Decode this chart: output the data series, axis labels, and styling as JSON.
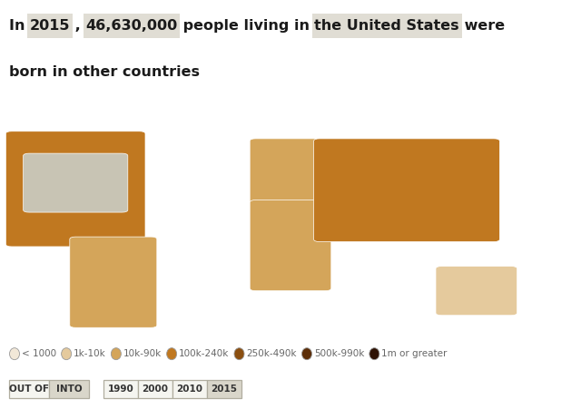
{
  "background_color": "#ffffff",
  "map_ocean_color": "#c8ddf0",
  "title_line1": [
    {
      "text": "In ",
      "highlight": false
    },
    {
      "text": "2015",
      "highlight": true
    },
    {
      "text": " , ",
      "highlight": false
    },
    {
      "text": "46,630,000",
      "highlight": true
    },
    {
      "text": " people living in ",
      "highlight": false
    },
    {
      "text": "the United States",
      "highlight": true
    },
    {
      "text": " were",
      "highlight": false
    }
  ],
  "title_line2": [
    {
      "text": "born in other countries",
      "highlight": false
    }
  ],
  "highlight_box_color": "#e0ddd4",
  "title_fontsize": 11.5,
  "title_color": "#1a1a1a",
  "legend_items": [
    {
      "label": "< 1000",
      "color": "#f2e8d8"
    },
    {
      "label": "1k-10k",
      "color": "#e5ca9d"
    },
    {
      "label": "10k-90k",
      "color": "#d4a55a"
    },
    {
      "label": "100k-240k",
      "color": "#c07820"
    },
    {
      "label": "250k-490k",
      "color": "#8b4f10"
    },
    {
      "label": "500k-990k",
      "color": "#5c2e08"
    },
    {
      "label": "1m or greater",
      "color": "#2e1204"
    }
  ],
  "legend_fontsize": 7.5,
  "legend_color": "#666666",
  "buttons_left": [
    "OUT OF",
    "INTO"
  ],
  "buttons_right": [
    "1990",
    "2000",
    "2010",
    "2015"
  ],
  "active_left": "INTO",
  "active_right": "2015",
  "btn_active_bg": "#d9d6ca",
  "btn_inactive_bg": "#f5f5f0",
  "btn_border": "#b0ad9f",
  "btn_fontsize": 7.5,
  "btn_color": "#333333",
  "country_color_map": {
    "United States of America": "#c8c4b4",
    "Mexico": "#8b4f10",
    "Canada": "#c07820",
    "China": "#2e1204",
    "India": "#2e1204",
    "Philippines": "#5c2e08",
    "El Salvador": "#c07820",
    "Vietnam": "#c07820",
    "Cuba": "#c07820",
    "Korea": "#c07820",
    "South Korea": "#c07820",
    "Dominican Republic": "#c07820",
    "Guatemala": "#c07820",
    "Colombia": "#d4a55a",
    "Honduras": "#d4a55a",
    "Jamaica": "#d4a55a",
    "Ecuador": "#d4a55a",
    "Brazil": "#5c2e08",
    "Russia": "#c07820",
    "Germany": "#d4a55a",
    "United Kingdom": "#d4a55a",
    "Poland": "#d4a55a",
    "Japan": "#d4a55a",
    "Haiti": "#d4a55a",
    "Peru": "#d4a55a",
    "Iran": "#d4a55a",
    "Pakistan": "#d4a55a",
    "Nigeria": "#d4a55a",
    "Ethiopia": "#d4a55a",
    "Argentina": "#d4a55a",
    "Ukraine": "#d4a55a",
    "Bangladesh": "#d4a55a",
    "Indonesia": "#d4a55a",
    "Thailand": "#e5ca9d",
    "Morocco": "#d4a55a",
    "Ghana": "#d4a55a",
    "Cameroon": "#e5ca9d",
    "Tanzania": "#e5ca9d",
    "Kenya": "#d4a55a",
    "Egypt": "#d4a55a",
    "Iraq": "#d4a55a",
    "Syria": "#d4a55a",
    "Saudi Arabia": "#d4a55a",
    "Afghanistan": "#d4a55a",
    "Nepal": "#d4a55a",
    "Sri Lanka": "#e5ca9d",
    "Malaysia": "#e5ca9d",
    "Myanmar": "#e5ca9d",
    "Cambodia": "#e5ca9d",
    "Laos": "#e5ca9d",
    "Australia": "#e5ca9d",
    "New Zealand": "#e5ca9d",
    "France": "#e5ca9d",
    "Spain": "#e5ca9d",
    "Italy": "#e5ca9d",
    "Greece": "#e5ca9d",
    "Portugal": "#e5ca9d",
    "Romania": "#e5ca9d",
    "Albania": "#e5ca9d",
    "Guyana": "#e5ca9d",
    "Trinidad and Tobago": "#e5ca9d",
    "Venezuela": "#e5ca9d",
    "Bolivia": "#e5ca9d",
    "Chile": "#e5ca9d",
    "Paraguay": "#e5ca9d",
    "Uruguay": "#e5ca9d",
    "Panama": "#e5ca9d",
    "Costa Rica": "#e5ca9d",
    "Nicaragua": "#e5ca9d",
    "Belize": "#e5ca9d",
    "default": "#e5ca9d"
  }
}
